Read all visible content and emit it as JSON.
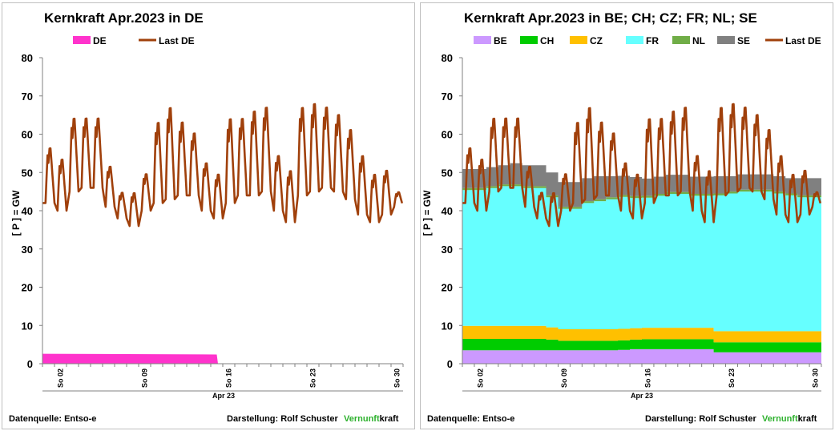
{
  "chart_data": [
    {
      "type": "area",
      "title": "Kernkraft  Apr.2023 in DE",
      "ylabel": "[ P ] = GW",
      "xlabel": "Apr 23",
      "ylim": [
        0,
        80
      ],
      "yticks": [
        0,
        10,
        20,
        30,
        40,
        50,
        60,
        70,
        80
      ],
      "x_days": [
        1,
        30
      ],
      "xticks": [
        {
          "day": 2,
          "label": "So 02"
        },
        {
          "day": 9,
          "label": "So 09"
        },
        {
          "day": 16,
          "label": "So 16"
        },
        {
          "day": 23,
          "label": "So 23"
        },
        {
          "day": 30,
          "label": "So 30"
        }
      ],
      "grid": false,
      "legend_position": "top",
      "legend": [
        {
          "name": "DE",
          "color": "#ff33cc",
          "kind": "area"
        },
        {
          "name": "Last DE",
          "color": "#a0400b",
          "kind": "line"
        }
      ],
      "series": [
        {
          "name": "DE",
          "color": "#ff33cc",
          "x": [
            1,
            15.5,
            15.6
          ],
          "values": [
            2.6,
            2.4,
            0
          ]
        }
      ],
      "load": {
        "name": "Last DE",
        "color": "#a0400b",
        "daily_peaks": [
          57,
          54,
          65,
          65,
          65,
          52,
          45,
          45,
          50,
          64,
          68,
          64,
          61,
          53,
          50,
          65,
          65,
          67,
          68,
          55,
          51,
          68,
          69,
          68,
          66,
          62,
          55,
          50,
          51,
          45
        ],
        "daily_troughs": [
          42,
          40,
          45,
          46,
          46,
          41,
          38,
          36,
          40,
          42,
          43,
          44,
          44,
          40,
          38,
          42,
          44,
          44,
          45,
          40,
          37,
          44,
          45,
          46,
          45,
          43,
          39,
          37,
          39,
          41
        ]
      },
      "footer": {
        "source": "Datenquelle: Entso-e",
        "author": "Darstellung:  Rolf Schuster",
        "brand_green": "Vernunft",
        "brand_black": "kraft"
      }
    },
    {
      "type": "area",
      "title": "Kernkraft  Apr.2023 in  BE;  CH;  CZ;  FR;  NL;  SE",
      "ylabel": "[ P ] = GW",
      "xlabel": "Apr 23",
      "ylim": [
        0,
        80
      ],
      "yticks": [
        0,
        10,
        20,
        30,
        40,
        50,
        60,
        70,
        80
      ],
      "x_days": [
        1,
        30
      ],
      "xticks": [
        {
          "day": 2,
          "label": "So 02"
        },
        {
          "day": 9,
          "label": "So 09"
        },
        {
          "day": 16,
          "label": "So 16"
        },
        {
          "day": 23,
          "label": "So 23"
        },
        {
          "day": 30,
          "label": "So 30"
        }
      ],
      "grid": false,
      "legend_position": "top",
      "legend": [
        {
          "name": "BE",
          "color": "#cc99ff",
          "kind": "area"
        },
        {
          "name": "CH",
          "color": "#00cc00",
          "kind": "area"
        },
        {
          "name": "CZ",
          "color": "#ffc000",
          "kind": "area"
        },
        {
          "name": "FR",
          "color": "#66ffff",
          "kind": "area"
        },
        {
          "name": "NL",
          "color": "#70ad47",
          "kind": "area"
        },
        {
          "name": "SE",
          "color": "#808080",
          "kind": "area"
        },
        {
          "name": "Last DE",
          "color": "#a0400b",
          "kind": "line"
        }
      ],
      "stacked_series": [
        {
          "name": "BE",
          "color": "#cc99ff",
          "values": [
            3.5,
            3.5,
            3.5,
            3.5,
            3.5,
            3.5,
            3.5,
            3.5,
            3.5,
            3.5,
            3.5,
            3.5,
            3.5,
            3.6,
            3.8,
            3.8,
            3.8,
            3.8,
            3.8,
            3.8,
            3.8,
            3.0,
            3.0,
            3.0,
            3.0,
            3.0,
            3.0,
            3.0,
            3.0,
            3.0
          ]
        },
        {
          "name": "CH",
          "color": "#00cc00",
          "values": [
            3.0,
            3.0,
            3.0,
            3.0,
            3.0,
            3.0,
            3.0,
            2.8,
            2.5,
            2.5,
            2.5,
            2.5,
            2.5,
            2.5,
            2.5,
            2.6,
            2.6,
            2.6,
            2.6,
            2.6,
            2.6,
            2.6,
            2.6,
            2.6,
            2.6,
            2.6,
            2.6,
            2.6,
            2.6,
            2.6
          ]
        },
        {
          "name": "CZ",
          "color": "#ffc000",
          "values": [
            3.4,
            3.4,
            3.4,
            3.4,
            3.4,
            3.4,
            3.4,
            3.2,
            3.0,
            3.0,
            3.0,
            3.0,
            3.0,
            3.0,
            3.0,
            3.0,
            3.0,
            3.0,
            3.0,
            3.0,
            3.0,
            2.9,
            2.9,
            2.9,
            2.9,
            2.9,
            2.9,
            2.9,
            2.9,
            2.9
          ]
        },
        {
          "name": "FR",
          "color": "#66ffff",
          "values": [
            35.5,
            35.5,
            36.0,
            36.5,
            36.5,
            36.0,
            36.0,
            34.0,
            31.5,
            31.5,
            33.0,
            33.5,
            34.0,
            34.5,
            34.0,
            34.0,
            34.5,
            35.0,
            35.0,
            34.5,
            34.5,
            35.5,
            36.0,
            36.5,
            36.5,
            36.5,
            36.0,
            35.5,
            35.0,
            35.0
          ]
        },
        {
          "name": "NL",
          "color": "#70ad47",
          "values": [
            0.5,
            0.5,
            0.5,
            0.5,
            0.5,
            0.5,
            0.5,
            0.5,
            0.5,
            0.5,
            0.5,
            0.5,
            0.5,
            0.5,
            0.5,
            0.5,
            0.5,
            0.5,
            0.5,
            0.5,
            0.5,
            0.5,
            0.5,
            0.5,
            0.5,
            0.5,
            0.5,
            0.5,
            0.5,
            0.5
          ]
        },
        {
          "name": "SE",
          "color": "#808080",
          "values": [
            5.0,
            5.0,
            5.0,
            5.0,
            5.5,
            5.5,
            5.5,
            6.0,
            6.5,
            6.5,
            6.0,
            6.0,
            5.5,
            5.0,
            5.0,
            4.5,
            4.5,
            4.5,
            4.5,
            4.5,
            4.5,
            4.5,
            4.0,
            4.0,
            4.0,
            4.0,
            4.0,
            4.0,
            4.5,
            4.5
          ]
        }
      ],
      "load": {
        "name": "Last DE",
        "color": "#a0400b",
        "daily_peaks": [
          57,
          54,
          65,
          65,
          65,
          52,
          45,
          45,
          50,
          64,
          68,
          64,
          61,
          53,
          50,
          65,
          65,
          67,
          68,
          55,
          51,
          68,
          69,
          68,
          66,
          62,
          55,
          50,
          51,
          45
        ],
        "daily_troughs": [
          42,
          40,
          45,
          46,
          46,
          41,
          38,
          36,
          40,
          42,
          43,
          44,
          44,
          40,
          38,
          42,
          44,
          44,
          45,
          40,
          37,
          44,
          45,
          46,
          45,
          43,
          39,
          37,
          39,
          41
        ]
      },
      "footer": {
        "source": "Datenquelle: Entso-e",
        "author": "Darstellung:  Rolf Schuster",
        "brand_green": "Vernunft",
        "brand_black": "kraft"
      }
    }
  ]
}
